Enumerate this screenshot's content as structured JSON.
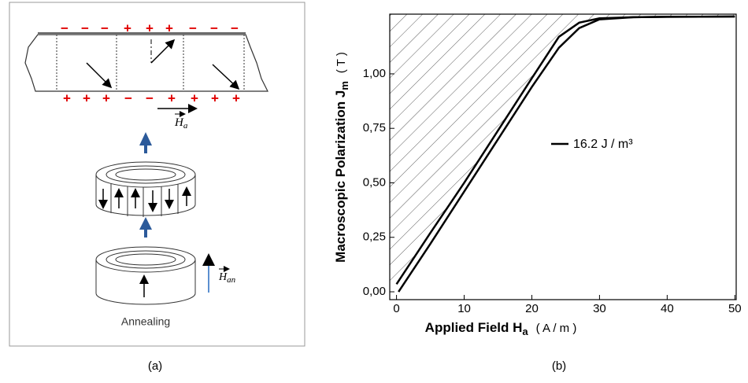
{
  "diagram": {
    "top_charges": [
      "−",
      "−",
      "−",
      "+",
      "+",
      "+",
      "−",
      "−",
      "−"
    ],
    "bottom_charges": [
      "+",
      "+",
      "+",
      "−",
      "−",
      "+",
      "+",
      "+",
      "+"
    ],
    "field_label": "H",
    "field_sub": "a",
    "anneal_field_label": "H",
    "anneal_field_sub": "an",
    "caption": "Annealing",
    "panel_label": "(a)"
  },
  "chart_data": {
    "type": "line",
    "panel_label": "(b)",
    "xlabel": "Applied Field H",
    "xlabel_sub": "a",
    "xlabel_unit": "( A / m )",
    "ylabel": "Macroscopic Polarization  J",
    "ylabel_sub": "m",
    "ylabel_unit": "( T )",
    "xlim": [
      -1,
      50.2
    ],
    "ylim": [
      -0.036,
      1.274
    ],
    "xticks": [
      0,
      10,
      20,
      30,
      40,
      50
    ],
    "yticks": [
      {
        "value": 0,
        "label": "0,00"
      },
      {
        "value": 0.25,
        "label": "0,25"
      },
      {
        "value": 0.5,
        "label": "0,50"
      },
      {
        "value": 0.75,
        "label": "0,75"
      },
      {
        "value": 1,
        "label": "1,00"
      }
    ],
    "hatch": true,
    "series": [
      {
        "name": "16.2 J / m³",
        "color": "#000000",
        "x": [
          0,
          5,
          10,
          15,
          20,
          24,
          27,
          30,
          35,
          40,
          50
        ],
        "values": [
          0.035,
          0.27,
          0.5,
          0.74,
          0.98,
          1.17,
          1.235,
          1.255,
          1.26,
          1.262,
          1.263
        ]
      },
      {
        "color": "#000000",
        "x": [
          0.3,
          5,
          10,
          15,
          20,
          24,
          27,
          30,
          35,
          40,
          50
        ],
        "values": [
          0,
          0.22,
          0.46,
          0.7,
          0.94,
          1.12,
          1.21,
          1.25,
          1.26,
          1.262,
          1.263
        ]
      }
    ]
  }
}
